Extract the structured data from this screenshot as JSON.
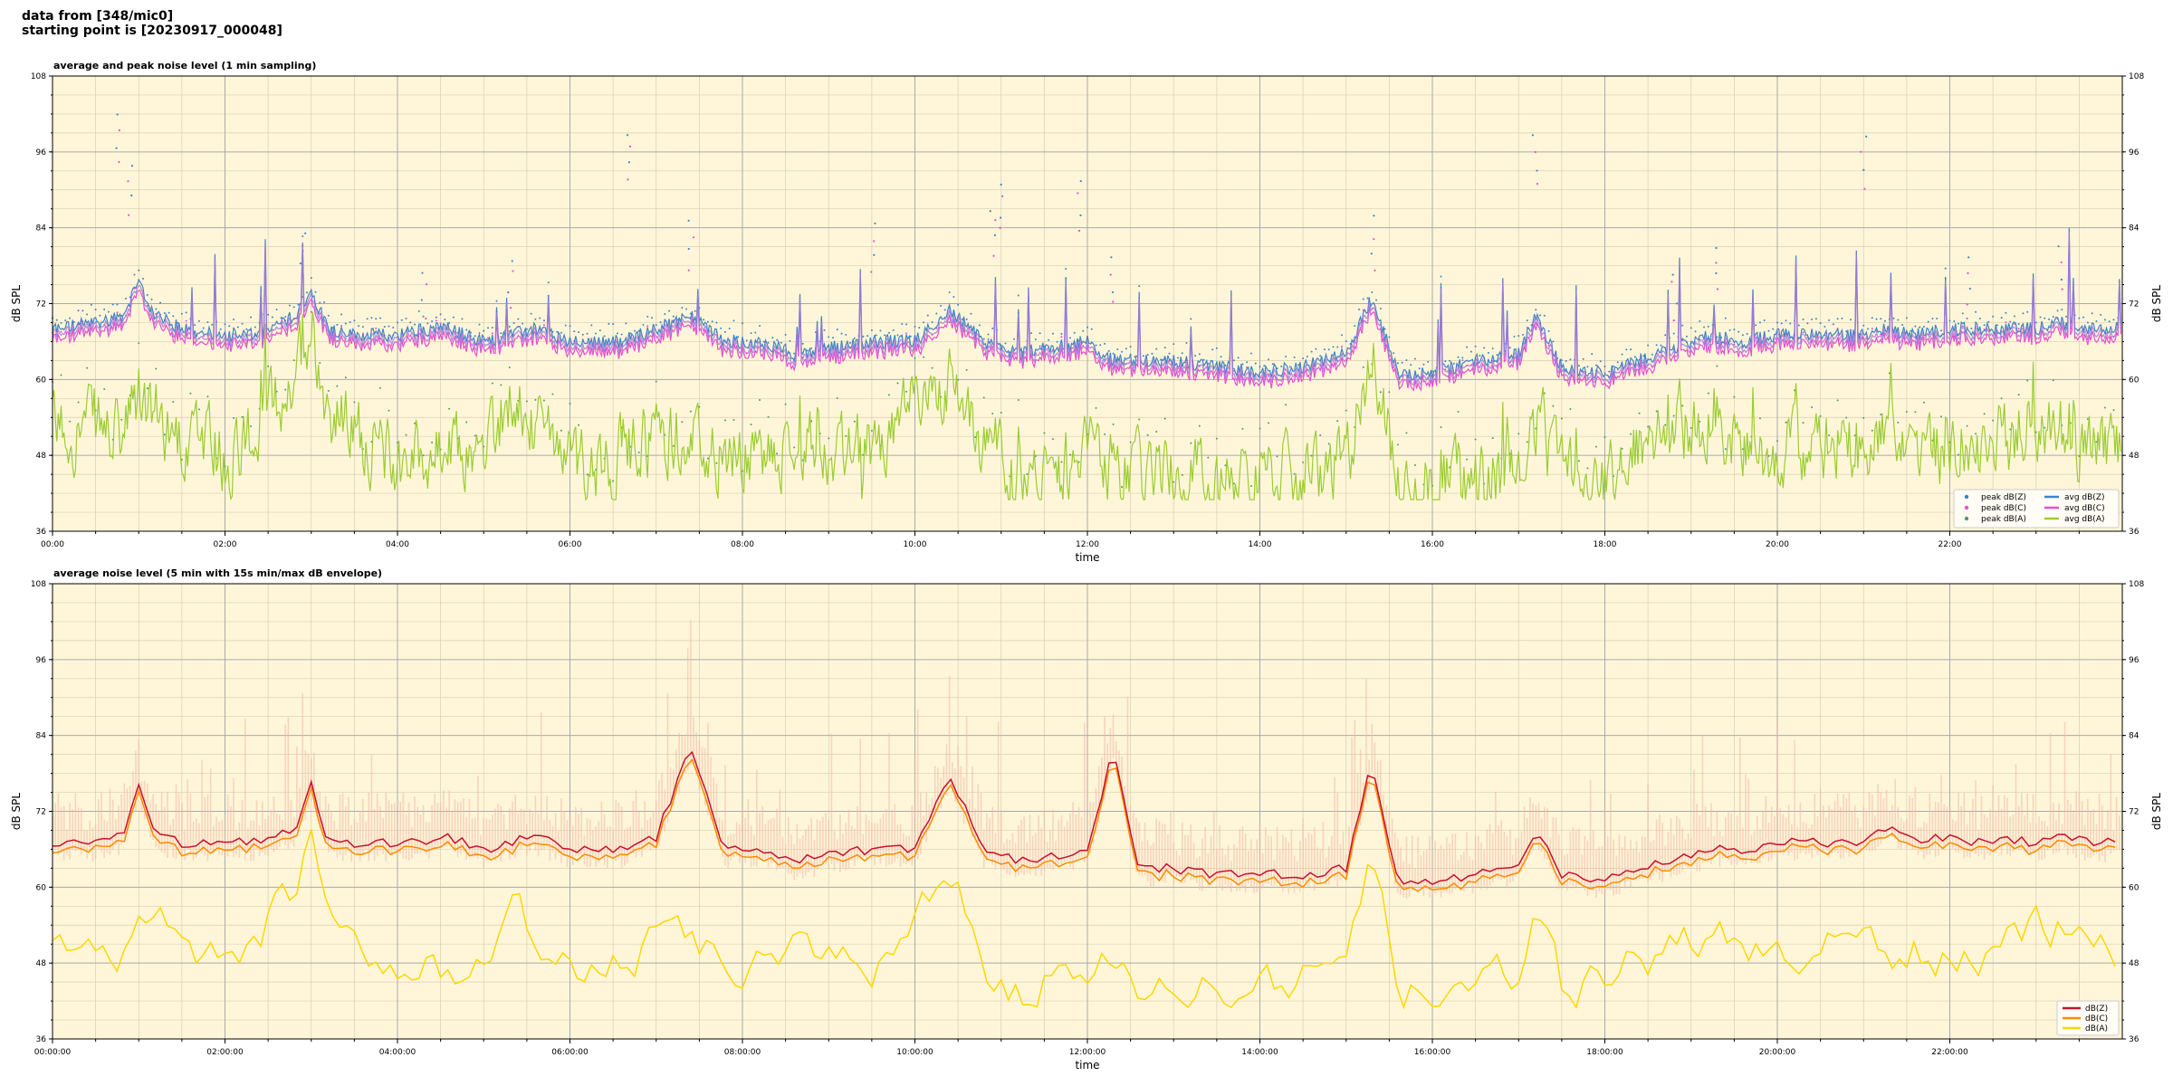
{
  "header": {
    "line1": "data from [348/mic0]",
    "line2": "starting point is [20230917_000048]"
  },
  "colors": {
    "bg": "#fff6d9",
    "grid_major": "#a9a9a9",
    "grid_minor": "#d8cfb2",
    "z": "#3f84c4",
    "c": "#e64fd0",
    "a": "#9acd32",
    "z2": "#c8102e",
    "c2": "#ff8c00",
    "a2": "#ffd700",
    "envelope": "#f2b8a8"
  },
  "chart_data": [
    {
      "type": "scatter",
      "title": "average and peak noise level (1 min sampling)",
      "xlabel": "time",
      "ylabel": "dB SPL",
      "ylim": [
        36,
        108
      ],
      "yticks": [
        36,
        48,
        60,
        72,
        84,
        96,
        108
      ],
      "xlim_hours": [
        0,
        24
      ],
      "xticks": [
        "00:00",
        "02:00",
        "04:00",
        "06:00",
        "08:00",
        "10:00",
        "12:00",
        "14:00",
        "16:00",
        "18:00",
        "20:00",
        "22:00"
      ],
      "grid": true,
      "legend_position": "bottom-right",
      "legend": [
        "peak dB(Z)",
        "peak dB(C)",
        "peak dB(A)",
        "avg dB(Z)",
        "avg dB(C)",
        "avg dB(A)"
      ],
      "keypoints": {
        "hours": [
          0,
          0.5,
          0.8,
          1.0,
          1.2,
          1.5,
          2.0,
          2.4,
          2.8,
          3.0,
          3.2,
          3.5,
          4.0,
          4.3,
          4.6,
          5.0,
          5.3,
          5.6,
          6.0,
          6.6,
          7.0,
          7.4,
          7.8,
          8.2,
          8.6,
          9.0,
          9.5,
          10.0,
          10.4,
          10.8,
          11.2,
          11.6,
          12.0,
          12.3,
          12.6,
          13.0,
          13.5,
          14.0,
          14.5,
          15.0,
          15.3,
          15.6,
          16.0,
          16.5,
          17.0,
          17.2,
          17.5,
          18.0,
          18.4,
          18.8,
          19.2,
          19.6,
          20.0,
          20.5,
          21.0,
          21.3,
          21.6,
          22.0,
          22.3,
          22.6,
          23.0,
          23.3,
          23.6,
          24
        ],
        "avg_z": [
          68,
          69,
          70,
          75,
          70,
          68,
          67,
          67,
          70,
          74,
          68,
          67,
          67,
          68,
          68,
          66,
          67,
          68,
          66,
          66,
          68,
          70,
          66,
          66,
          64,
          65,
          66,
          66,
          71,
          66,
          64,
          65,
          66,
          63,
          63,
          63,
          62,
          61,
          62,
          64,
          73,
          61,
          61,
          63,
          64,
          70,
          62,
          61,
          63,
          65,
          67,
          66,
          67,
          67,
          67,
          68,
          67,
          68,
          68,
          68,
          68,
          69,
          68,
          68
        ],
        "avg_a": [
          52,
          53,
          50,
          57,
          54,
          51,
          48,
          53,
          60,
          70,
          55,
          52,
          47,
          48,
          48,
          48,
          58,
          51,
          47,
          48,
          52,
          50,
          48,
          47,
          49,
          48,
          48,
          55,
          60,
          48,
          44,
          46,
          47,
          47,
          45,
          45,
          44,
          44,
          45,
          46,
          65,
          43,
          43,
          44,
          46,
          54,
          44,
          44,
          49,
          50,
          54,
          50,
          49,
          50,
          51,
          50,
          50,
          49,
          50,
          50,
          54,
          52,
          49,
          49
        ],
        "peak_outliers": [
          [
            0.75,
            102
          ],
          [
            0.9,
            95
          ],
          [
            2.9,
            84
          ],
          [
            4.3,
            78
          ],
          [
            5.3,
            80
          ],
          [
            6.7,
            100
          ],
          [
            7.4,
            86
          ],
          [
            9.5,
            85
          ],
          [
            10.9,
            88
          ],
          [
            11.0,
            92
          ],
          [
            11.9,
            92
          ],
          [
            12.3,
            80
          ],
          [
            15.3,
            86
          ],
          [
            17.2,
            99
          ],
          [
            18.8,
            78
          ],
          [
            19.3,
            82
          ],
          [
            21.0,
            99
          ],
          [
            22.2,
            80
          ],
          [
            23.3,
            82
          ]
        ]
      }
    },
    {
      "type": "line",
      "title": "average noise level (5 min with 15s min/max dB envelope)",
      "xlabel": "time",
      "ylabel": "dB SPL",
      "ylim": [
        36,
        108
      ],
      "yticks": [
        36,
        48,
        60,
        72,
        84,
        96,
        108
      ],
      "xlim_hours": [
        0,
        24
      ],
      "xticks": [
        "00:00:00",
        "02:00:00",
        "04:00:00",
        "06:00:00",
        "08:00:00",
        "10:00:00",
        "12:00:00",
        "14:00:00",
        "16:00:00",
        "18:00:00",
        "20:00:00",
        "22:00:00"
      ],
      "grid": true,
      "legend_position": "bottom-right",
      "legend": [
        "dB(Z)",
        "dB(C)",
        "dB(A)"
      ],
      "keypoints": {
        "hours": [
          0,
          0.5,
          0.8,
          1.0,
          1.2,
          1.5,
          2.0,
          2.4,
          2.8,
          3.0,
          3.2,
          3.5,
          4.0,
          4.3,
          4.6,
          5.0,
          5.3,
          5.6,
          6.0,
          6.6,
          7.0,
          7.4,
          7.8,
          8.2,
          8.6,
          9.0,
          9.5,
          10.0,
          10.4,
          10.8,
          11.2,
          11.6,
          12.0,
          12.3,
          12.6,
          13.0,
          13.5,
          14.0,
          14.5,
          15.0,
          15.3,
          15.6,
          16.0,
          16.5,
          17.0,
          17.2,
          17.5,
          18.0,
          18.4,
          18.8,
          19.2,
          19.6,
          20.0,
          20.5,
          21.0,
          21.3,
          21.6,
          22.0,
          22.3,
          22.6,
          23.0,
          23.3,
          23.6,
          24
        ],
        "z": [
          67,
          67,
          68,
          76,
          68,
          67,
          67,
          67,
          69,
          76,
          67,
          67,
          67,
          67,
          68,
          66,
          67,
          68,
          66,
          66,
          68,
          82,
          66,
          66,
          64,
          65,
          66,
          66,
          78,
          66,
          64,
          65,
          66,
          82,
          63,
          63,
          62,
          62,
          62,
          63,
          80,
          61,
          61,
          62,
          63,
          69,
          62,
          61,
          63,
          64,
          66,
          66,
          67,
          67,
          67,
          70,
          67,
          68,
          67,
          68,
          67,
          68,
          67,
          67
        ],
        "a": [
          50,
          51,
          49,
          57,
          54,
          51,
          47,
          52,
          60,
          69,
          55,
          52,
          47,
          48,
          48,
          48,
          58,
          51,
          47,
          48,
          51,
          50,
          48,
          47,
          49,
          48,
          48,
          55,
          62,
          48,
          44,
          46,
          47,
          47,
          45,
          45,
          44,
          44,
          45,
          46,
          63,
          43,
          43,
          44,
          46,
          55,
          44,
          44,
          49,
          50,
          54,
          50,
          49,
          50,
          51,
          50,
          50,
          49,
          50,
          50,
          54,
          53,
          49,
          49
        ]
      }
    }
  ]
}
